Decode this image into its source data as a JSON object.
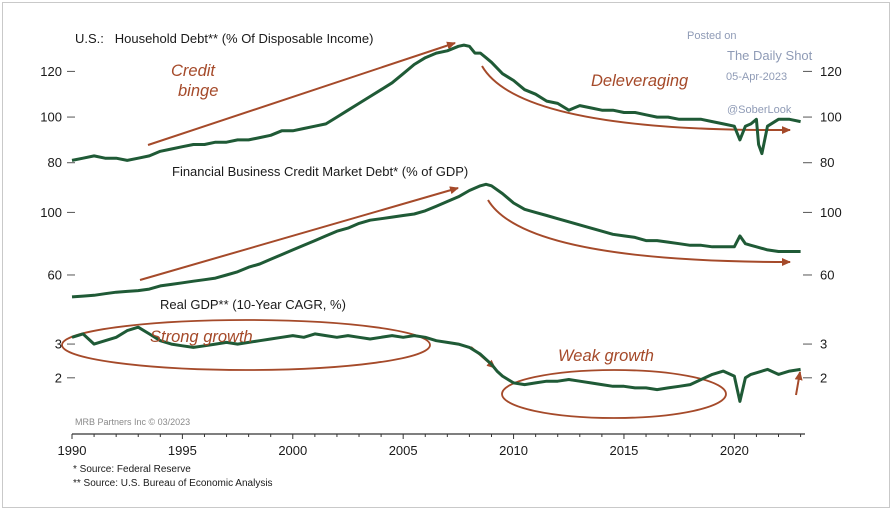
{
  "watermark": {
    "posted_on": "Posted on",
    "site": "The Daily Shot",
    "date": "05-Apr-2023",
    "handle": "@SoberLook"
  },
  "colors": {
    "line": "#1f5a36",
    "annotation": "#a54a2a",
    "watermark": "#8f9bb6"
  },
  "chart_data": [
    {
      "type": "line",
      "title": "U.S.:   Household Debt** (% Of Disposable Income)",
      "yticks": [
        80,
        100,
        120
      ],
      "ylim": [
        79,
        132
      ],
      "xlim": [
        1990,
        2023.2
      ],
      "annotations": [
        "Credit",
        "binge",
        "Deleveraging"
      ],
      "series": [
        {
          "x": [
            1990.0,
            1990.5,
            1991.0,
            1991.5,
            1992.0,
            1992.5,
            1993.0,
            1993.5,
            1994.0,
            1994.5,
            1995.0,
            1995.5,
            1996.0,
            1996.5,
            1997.0,
            1997.5,
            1998.0,
            1998.5,
            1999.0,
            1999.5,
            2000.0,
            2000.5,
            2001.0,
            2001.5,
            2002.0,
            2002.5,
            2003.0,
            2003.5,
            2004.0,
            2004.5,
            2005.0,
            2005.5,
            2006.0,
            2006.5,
            2007.0,
            2007.5,
            2007.75,
            2008.0,
            2008.25,
            2008.5,
            2008.75,
            2009.0,
            2009.5,
            2010.0,
            2010.5,
            2011.0,
            2011.5,
            2012.0,
            2012.5,
            2012.75,
            2013.0,
            2013.5,
            2014.0,
            2014.5,
            2015.0,
            2015.5,
            2016.0,
            2016.5,
            2017.0,
            2017.5,
            2018.0,
            2018.5,
            2019.0,
            2019.5,
            2020.0,
            2020.25,
            2020.5,
            2020.75,
            2021.0,
            2021.1,
            2021.25,
            2021.5,
            2022.0,
            2022.5,
            2023.0
          ],
          "values": [
            81,
            82,
            83,
            82,
            82,
            81,
            82,
            83,
            85,
            86,
            87,
            88,
            88,
            89,
            89,
            90,
            90,
            91,
            92,
            94,
            94,
            95,
            96,
            97,
            100,
            103,
            106,
            109,
            112,
            115,
            119,
            123,
            126,
            128,
            129,
            131,
            131.5,
            131,
            128,
            128,
            126,
            124,
            119,
            116,
            112,
            110,
            107,
            106,
            103,
            104,
            105,
            104,
            103,
            103,
            102,
            102,
            101,
            100,
            100,
            99,
            99,
            99,
            98,
            97,
            96,
            90,
            96,
            97,
            99,
            88,
            84,
            96,
            99,
            99,
            98
          ]
        }
      ]
    },
    {
      "type": "line",
      "title": "Financial Business Credit Market Debt* (% of GDP)",
      "yticks": [
        60,
        100
      ],
      "ylim": [
        44,
        122
      ],
      "xlim": [
        1990,
        2023.2
      ],
      "series": [
        {
          "x": [
            1990.0,
            1990.5,
            1991.0,
            1991.5,
            1992.0,
            1992.5,
            1993.0,
            1993.5,
            1994.0,
            1994.5,
            1995.0,
            1995.5,
            1996.0,
            1996.5,
            1997.0,
            1997.5,
            1998.0,
            1998.5,
            1999.0,
            1999.5,
            2000.0,
            2000.5,
            2001.0,
            2001.5,
            2002.0,
            2002.5,
            2003.0,
            2003.5,
            2004.0,
            2004.5,
            2005.0,
            2005.5,
            2006.0,
            2006.5,
            2007.0,
            2007.5,
            2008.0,
            2008.5,
            2008.75,
            2009.0,
            2009.5,
            2010.0,
            2010.5,
            2011.0,
            2011.5,
            2012.0,
            2012.5,
            2013.0,
            2013.5,
            2014.0,
            2014.5,
            2015.0,
            2015.5,
            2016.0,
            2016.5,
            2017.0,
            2017.5,
            2018.0,
            2018.5,
            2019.0,
            2019.5,
            2020.0,
            2020.25,
            2020.5,
            2020.75,
            2021.0,
            2021.5,
            2022.0,
            2022.5,
            2023.0
          ],
          "values": [
            46,
            46.5,
            47,
            48,
            49,
            49.5,
            50,
            51,
            53,
            54,
            55,
            56,
            57,
            58,
            60,
            62,
            65,
            67,
            70,
            73,
            76,
            79,
            82,
            85,
            88,
            90,
            93,
            95,
            96,
            97,
            98,
            99,
            101,
            104,
            107,
            110,
            114,
            117,
            118,
            117,
            112,
            106,
            102,
            100,
            98,
            96,
            94,
            92,
            90,
            88,
            86,
            85,
            84,
            82,
            82,
            81,
            80,
            79,
            79,
            78,
            78,
            78,
            85,
            80,
            79,
            78,
            76,
            75,
            75,
            75
          ]
        }
      ]
    },
    {
      "type": "line",
      "title": "Real GDP** (10-Year CAGR, %)",
      "yticks": [
        2,
        3
      ],
      "ylim": [
        0.75,
        3.95
      ],
      "xlim": [
        1990,
        2023.2
      ],
      "annotations": [
        "Strong growth",
        "Weak growth"
      ],
      "series": [
        {
          "x": [
            1990.0,
            1990.5,
            1991.0,
            1991.5,
            1992.0,
            1992.5,
            1993.0,
            1993.5,
            1994.0,
            1994.5,
            1995.0,
            1995.5,
            1996.0,
            1996.5,
            1997.0,
            1997.5,
            1998.0,
            1998.5,
            1999.0,
            1999.5,
            2000.0,
            2000.5,
            2001.0,
            2001.5,
            2002.0,
            2002.5,
            2003.0,
            2003.5,
            2004.0,
            2004.5,
            2005.0,
            2005.5,
            2006.0,
            2006.5,
            2007.0,
            2007.5,
            2008.0,
            2008.5,
            2009.0,
            2009.25,
            2009.5,
            2009.75,
            2010.0,
            2010.5,
            2011.0,
            2011.5,
            2012.0,
            2012.5,
            2013.0,
            2013.5,
            2014.0,
            2014.5,
            2015.0,
            2015.5,
            2016.0,
            2016.5,
            2017.0,
            2017.5,
            2018.0,
            2018.5,
            2019.0,
            2019.5,
            2020.0,
            2020.25,
            2020.5,
            2020.75,
            2021.0,
            2021.5,
            2022.0,
            2022.5,
            2023.0
          ],
          "values": [
            3.2,
            3.3,
            3.0,
            3.1,
            3.2,
            3.4,
            3.5,
            3.3,
            3.1,
            3.0,
            2.95,
            2.9,
            2.95,
            3.0,
            3.05,
            3.0,
            3.05,
            3.1,
            3.15,
            3.2,
            3.25,
            3.2,
            3.3,
            3.25,
            3.2,
            3.25,
            3.2,
            3.15,
            3.2,
            3.25,
            3.2,
            3.25,
            3.2,
            3.1,
            3.05,
            3.0,
            2.9,
            2.7,
            2.4,
            2.2,
            2.05,
            1.95,
            1.85,
            1.8,
            1.85,
            1.9,
            1.9,
            1.95,
            1.9,
            1.85,
            1.8,
            1.75,
            1.75,
            1.7,
            1.7,
            1.65,
            1.7,
            1.75,
            1.8,
            1.95,
            2.1,
            2.2,
            2.05,
            1.3,
            2.0,
            2.1,
            2.15,
            2.25,
            2.1,
            2.2,
            2.25
          ]
        }
      ]
    }
  ],
  "xaxis": {
    "ticks": [
      1990,
      1995,
      2000,
      2005,
      2010,
      2015,
      2020
    ],
    "labels": [
      "1990",
      "1995",
      "2000",
      "2005",
      "2010",
      "2015",
      "2020"
    ]
  },
  "credit": "MRB Partners Inc © 03/2023",
  "footnotes": [
    "*  Source: Federal Reserve",
    "** Source: U.S. Bureau of Economic Analysis"
  ]
}
